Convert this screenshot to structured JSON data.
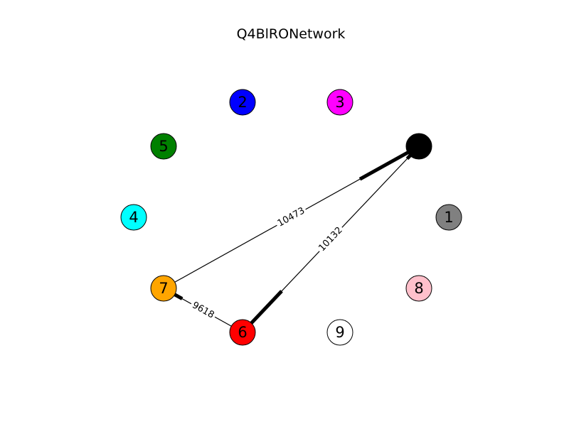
{
  "title": "Q4BlRONetwork",
  "nodes": [
    {
      "id": "0",
      "label": "",
      "color": "#000000"
    },
    {
      "id": "1",
      "label": "1",
      "color": "#808080"
    },
    {
      "id": "2",
      "label": "2",
      "color": "#0000ff"
    },
    {
      "id": "3",
      "label": "3",
      "color": "#ff00ff"
    },
    {
      "id": "4",
      "label": "4",
      "color": "#00ffff"
    },
    {
      "id": "5",
      "label": "5",
      "color": "#008000"
    },
    {
      "id": "6",
      "label": "6",
      "color": "#ff0000"
    },
    {
      "id": "7",
      "label": "7",
      "color": "#ffa500"
    },
    {
      "id": "8",
      "label": "8",
      "color": "#ffc0cb"
    },
    {
      "id": "9",
      "label": "9",
      "color": "#ffffff"
    }
  ],
  "edges": [
    {
      "source": "0",
      "target": "7",
      "weight": "10473"
    },
    {
      "source": "0",
      "target": "6",
      "weight": "10132"
    },
    {
      "source": "7",
      "target": "6",
      "weight": "9618"
    }
  ]
}
